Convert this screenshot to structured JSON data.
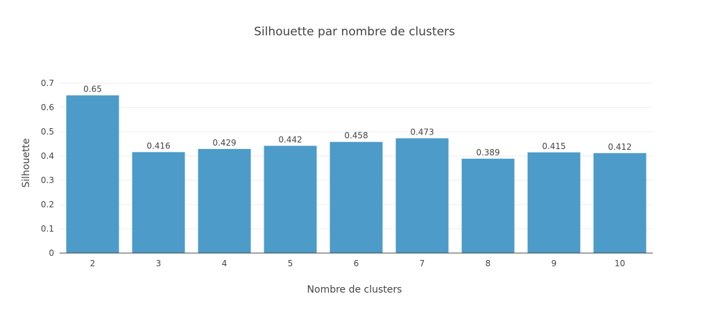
{
  "chart_data": {
    "type": "bar",
    "title": "Silhouette par nombre de clusters",
    "xlabel": "Nombre de clusters",
    "ylabel": "Silhouette",
    "categories": [
      "2",
      "3",
      "4",
      "5",
      "6",
      "7",
      "8",
      "9",
      "10"
    ],
    "values": [
      0.65,
      0.416,
      0.429,
      0.442,
      0.458,
      0.473,
      0.389,
      0.415,
      0.412
    ],
    "data_labels": [
      "0.65",
      "0.416",
      "0.429",
      "0.442",
      "0.458",
      "0.473",
      "0.389",
      "0.415",
      "0.412"
    ],
    "ylim": [
      0,
      0.7
    ],
    "yticks": [
      0,
      0.1,
      0.2,
      0.3,
      0.4,
      0.5,
      0.6,
      0.7
    ],
    "ytick_labels": [
      "0",
      "0.1",
      "0.2",
      "0.3",
      "0.4",
      "0.5",
      "0.6",
      "0.7"
    ],
    "bar_color": "#4c9bc9",
    "grid": true,
    "legend": "none"
  }
}
